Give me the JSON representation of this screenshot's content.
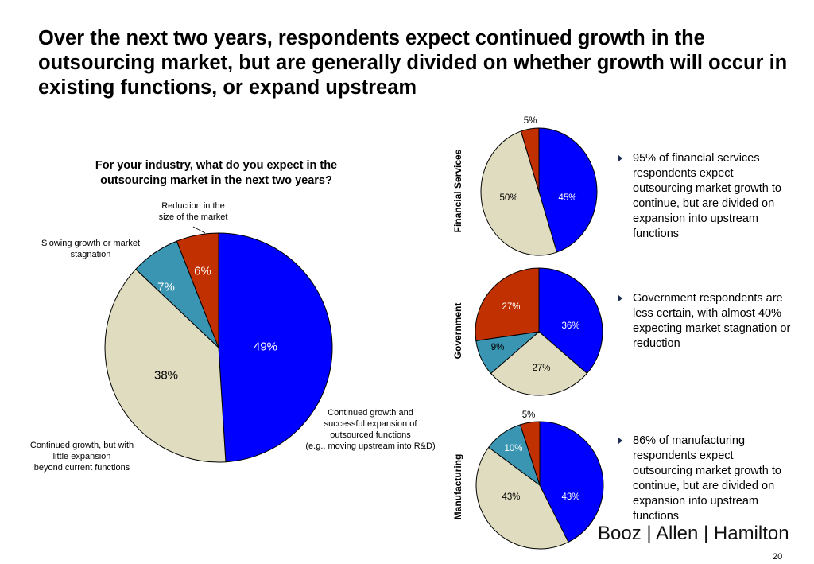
{
  "title": "Over the next two years, respondents expect continued growth in the outsourcing market, but are generally divided on whether growth will occur in existing functions, or expand upstream",
  "colors": {
    "blue": "#0000ff",
    "beige": "#e0dcc0",
    "teal": "#3a95b2",
    "red": "#c03000"
  },
  "chart_data": [
    {
      "type": "pie",
      "title": "For your industry, what do you expect in the outsourcing market in the next two years?",
      "categories": [
        "Continued growth and successful expansion of outsourced functions (e.g., moving upstream into R&D)",
        "Continued growth, but with little expansion beyond current functions",
        "Slowing growth or market stagnation",
        "Reduction in the size of the market"
      ],
      "category_lines": [
        [
          "Continued growth and",
          "successful expansion of",
          "outsourced functions",
          "(e.g., moving upstream into R&D)"
        ],
        [
          "Continued growth, but with",
          "little expansion",
          "beyond current functions"
        ],
        [
          "Slowing growth or market",
          "stagnation"
        ],
        [
          "Reduction in the",
          "size of the market"
        ]
      ],
      "values": [
        49,
        38,
        7,
        6
      ],
      "labels": [
        "49%",
        "38%",
        "7%",
        "6%"
      ]
    },
    {
      "type": "pie",
      "title": "Financial Services",
      "values": [
        45,
        50,
        0,
        5
      ],
      "labels": [
        "45%",
        "50%",
        "",
        "5%"
      ]
    },
    {
      "type": "pie",
      "title": "Government",
      "values": [
        36,
        27,
        9,
        27
      ],
      "labels": [
        "36%",
        "27%",
        "9%",
        "27%"
      ]
    },
    {
      "type": "pie",
      "title": "Manufacturing",
      "values": [
        43,
        43,
        10,
        5
      ],
      "labels": [
        "43%",
        "43%",
        "10%",
        "5%"
      ]
    }
  ],
  "bullets": [
    "95% of financial services respondents expect outsourcing market growth to continue, but are divided on expansion into upstream functions",
    "Government respondents are less certain, with almost 40% expecting market stagnation or reduction",
    "86% of manufacturing respondents expect outsourcing market growth to continue, but are divided on expansion into upstream functions"
  ],
  "logo": "Booz | Allen | Hamilton",
  "page_number": "20"
}
